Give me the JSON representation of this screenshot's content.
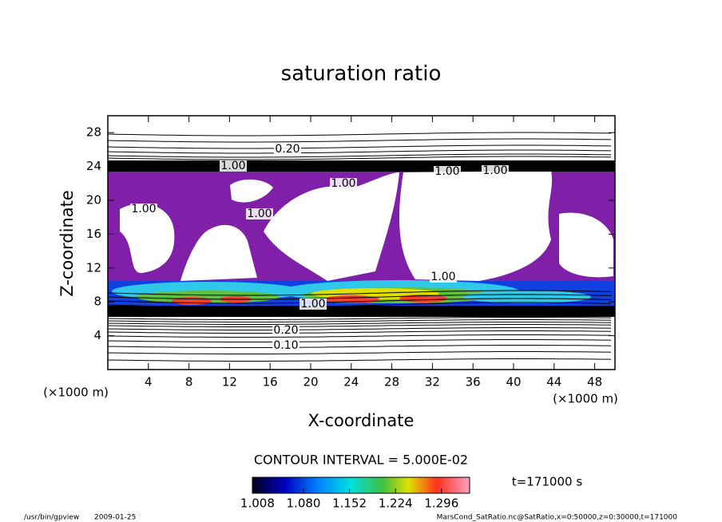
{
  "chart_data": {
    "type": "contour",
    "title": "saturation ratio",
    "x_label": "X-coordinate",
    "y_label": "Z-coordinate",
    "x_unit": "(×1000 m)",
    "y_unit": "(×1000 m)",
    "xlim": [
      0,
      50
    ],
    "ylim": [
      0,
      30
    ],
    "xticks": [
      4,
      8,
      12,
      16,
      20,
      24,
      28,
      32,
      36,
      40,
      44,
      48
    ],
    "yticks": [
      4,
      8,
      12,
      16,
      20,
      24,
      28
    ],
    "fill_color": "#8020a8",
    "contour_labels": {
      "values": [
        0.2,
        1,
        1,
        1,
        1,
        1,
        1,
        1,
        1,
        0.2,
        0.1
      ],
      "value_labels": [
        "0.20",
        "1.00",
        "1.00",
        "1.00",
        "1.00",
        "1.00",
        "1.00",
        "1.00",
        "1.00",
        "0.20",
        "0.10"
      ]
    },
    "contour_interval": "CONTOUR INTERVAL = 5.000E-02",
    "colorbar": {
      "lim": [
        1,
        1.34
      ],
      "ticks": [
        1.008,
        {
          "value": 1.08,
          "label": "1.080"
        },
        1.152,
        1.224,
        1.296
      ]
    },
    "time_label": "t=171000 s",
    "footer": {
      "program": "/usr/bin/gpview",
      "date": "2009-01-25",
      "source": "MarsCond_SatRatio.nc@SatRatio,x=0:50000,z=0:30000,t=171000"
    }
  }
}
